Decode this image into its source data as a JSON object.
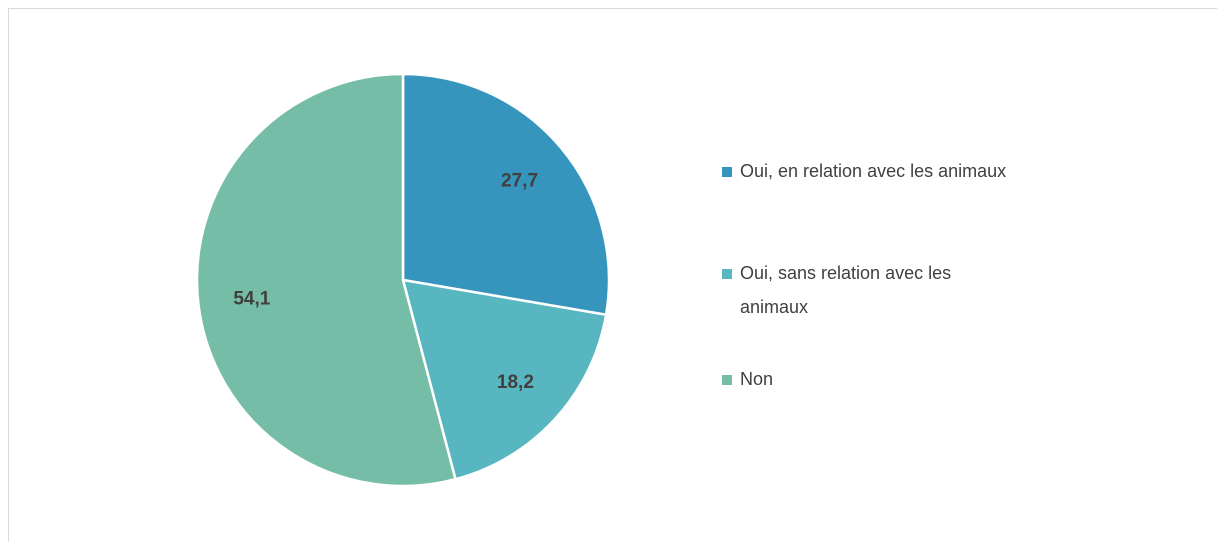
{
  "chart_data": {
    "type": "pie",
    "categories": [
      "Oui, en relation avec les animaux",
      "Oui, sans relation avec les animaux",
      "Non"
    ],
    "values": [
      27.7,
      18.2,
      54.1
    ],
    "value_labels": [
      "27,7",
      "18,2",
      "54,1"
    ],
    "colors": [
      "#3595bd",
      "#58b6c0",
      "#75bda7"
    ],
    "legend": "right"
  }
}
